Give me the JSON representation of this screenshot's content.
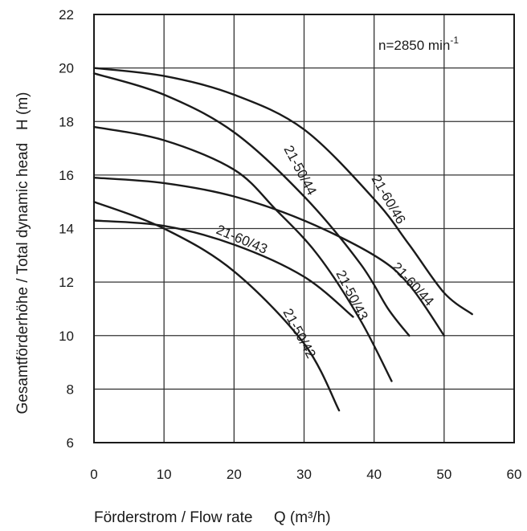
{
  "chart_data": {
    "type": "line",
    "xlabel": "Förderstrom / Flow rate     Q (m³/h)",
    "ylabel": "Gesamtförderhöhe / Total dynamic head   H (m)",
    "xlim": [
      0,
      60
    ],
    "ylim": [
      6,
      22
    ],
    "x_ticks": [
      "0",
      "10",
      "20",
      "30",
      "40",
      "50",
      "60"
    ],
    "y_ticks": [
      "6",
      "8",
      "10",
      "12",
      "14",
      "16",
      "18",
      "20",
      "22"
    ],
    "grid": true,
    "annotation": {
      "main": "n=2850 min",
      "sup": "-1"
    },
    "series": [
      {
        "name": "21-60/46",
        "x": [
          0,
          10,
          20,
          30,
          40,
          45,
          50,
          54
        ],
        "y": [
          20.0,
          19.7,
          19.0,
          17.7,
          15.1,
          13.4,
          11.6,
          10.8
        ]
      },
      {
        "name": "21-50/44",
        "x": [
          0,
          10,
          20,
          30,
          38,
          42,
          45
        ],
        "y": [
          19.8,
          19.0,
          17.6,
          15.2,
          12.7,
          11.0,
          10.0
        ]
      },
      {
        "name": "21-60/44",
        "x": [
          0,
          10,
          20,
          30,
          40,
          45,
          50
        ],
        "y": [
          15.9,
          15.7,
          15.2,
          14.3,
          13.0,
          11.9,
          10.0
        ]
      },
      {
        "name": "21-60/43",
        "x": [
          0,
          10,
          20,
          30,
          37
        ],
        "y": [
          14.3,
          14.1,
          13.4,
          12.2,
          10.7
        ]
      },
      {
        "name": "21-50/43",
        "x": [
          0,
          10,
          20,
          26,
          32,
          38,
          42.5
        ],
        "y": [
          17.8,
          17.3,
          16.2,
          14.7,
          13.0,
          10.6,
          8.3
        ]
      },
      {
        "name": "21-50/42",
        "x": [
          0,
          10,
          20,
          30,
          35
        ],
        "y": [
          15.0,
          14.0,
          12.4,
          9.7,
          7.2
        ]
      }
    ]
  }
}
